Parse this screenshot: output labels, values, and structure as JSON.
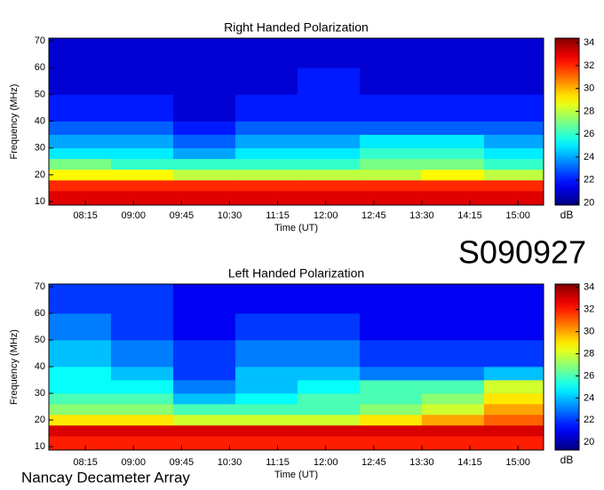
{
  "chart_data": [
    {
      "type": "heatmap",
      "title": "Right Handed Polarization",
      "x_label": "Time (UT)",
      "y_label": "Frequency (MHz)",
      "colorbar_label": "dB",
      "annotation": "S090927",
      "xlim": [
        7.68,
        15.4
      ],
      "ylim": [
        8.7,
        71
      ],
      "clim": [
        19.8,
        34.4
      ],
      "xticks": [
        {
          "value": 8.25,
          "label": "08:15"
        },
        {
          "value": 9,
          "label": "09:00"
        },
        {
          "value": 9.75,
          "label": "09:45"
        },
        {
          "value": 10.5,
          "label": "10:30"
        },
        {
          "value": 11.25,
          "label": "11:15"
        },
        {
          "value": 12,
          "label": "12:00"
        },
        {
          "value": 12.75,
          "label": "12:45"
        },
        {
          "value": 13.5,
          "label": "13:30"
        },
        {
          "value": 14.25,
          "label": "14:15"
        },
        {
          "value": 15,
          "label": "15:00"
        }
      ],
      "yticks": [
        10,
        20,
        30,
        40,
        50,
        60,
        70
      ],
      "cticks": [
        20,
        22,
        24,
        26,
        28,
        30,
        32,
        34
      ],
      "x_bins": [
        7.68,
        8.65,
        9.62,
        10.59,
        11.56,
        12.53,
        13.5,
        14.47,
        15.4
      ],
      "y_bins": [
        8.7,
        14,
        18,
        22,
        26,
        30,
        35,
        40,
        50,
        60,
        71
      ],
      "values": [
        [
          33,
          33,
          33,
          33,
          33,
          33,
          33,
          33
        ],
        [
          32,
          32,
          32,
          32,
          32,
          32,
          32,
          32
        ],
        [
          29,
          29,
          28,
          28,
          28,
          28,
          29,
          28
        ],
        [
          27,
          26,
          26,
          26,
          26,
          27,
          27,
          26
        ],
        [
          25,
          25,
          24,
          25,
          25,
          26,
          26,
          25
        ],
        [
          24,
          24,
          23,
          24,
          24,
          25,
          25,
          24
        ],
        [
          23,
          23,
          22,
          23,
          23,
          23,
          23,
          23
        ],
        [
          22,
          22,
          21,
          22,
          22,
          22,
          22,
          22
        ],
        [
          21,
          21,
          21,
          21,
          22,
          21,
          21,
          21
        ],
        [
          21,
          21,
          21,
          21,
          21,
          21,
          21,
          21
        ]
      ]
    },
    {
      "type": "heatmap",
      "title": "Left Handed Polarization",
      "x_label": "Time (UT)",
      "y_label": "Frequency (MHz)",
      "colorbar_label": "dB",
      "annotation": "Nancay Decameter Array",
      "xlim": [
        7.68,
        15.4
      ],
      "ylim": [
        8.7,
        71
      ],
      "clim": [
        19.3,
        34.3
      ],
      "xticks": [
        {
          "value": 8.25,
          "label": "08:15"
        },
        {
          "value": 9,
          "label": "09:00"
        },
        {
          "value": 9.75,
          "label": "09:45"
        },
        {
          "value": 10.5,
          "label": "10:30"
        },
        {
          "value": 11.25,
          "label": "11:15"
        },
        {
          "value": 12,
          "label": "12:00"
        },
        {
          "value": 12.75,
          "label": "12:45"
        },
        {
          "value": 13.5,
          "label": "13:30"
        },
        {
          "value": 14.25,
          "label": "14:15"
        },
        {
          "value": 15,
          "label": "15:00"
        }
      ],
      "yticks": [
        10,
        20,
        30,
        40,
        50,
        60,
        70
      ],
      "cticks": [
        20,
        22,
        24,
        26,
        28,
        30,
        32,
        34
      ],
      "x_bins": [
        7.68,
        8.65,
        9.62,
        10.59,
        11.56,
        12.53,
        13.5,
        14.47,
        15.4
      ],
      "y_bins": [
        8.7,
        14,
        18,
        22,
        26,
        30,
        35,
        40,
        50,
        60,
        71
      ],
      "values": [
        [
          32,
          32,
          32,
          32,
          32,
          32,
          32,
          32
        ],
        [
          33,
          33,
          33,
          33,
          33,
          33,
          33,
          33
        ],
        [
          29,
          29,
          28,
          28,
          28,
          29,
          30,
          31
        ],
        [
          27,
          27,
          26,
          26,
          26,
          27,
          28,
          30
        ],
        [
          26,
          26,
          24,
          25,
          26,
          26,
          27,
          29
        ],
        [
          25,
          25,
          23,
          24,
          25,
          26,
          26,
          28
        ],
        [
          25,
          24,
          22,
          24,
          24,
          23,
          23,
          24
        ],
        [
          24,
          23,
          22,
          23,
          23,
          22,
          22,
          22
        ],
        [
          23,
          22,
          21,
          22,
          22,
          21,
          21,
          21
        ],
        [
          22,
          22,
          21,
          21,
          21,
          21,
          21,
          21
        ]
      ]
    }
  ]
}
